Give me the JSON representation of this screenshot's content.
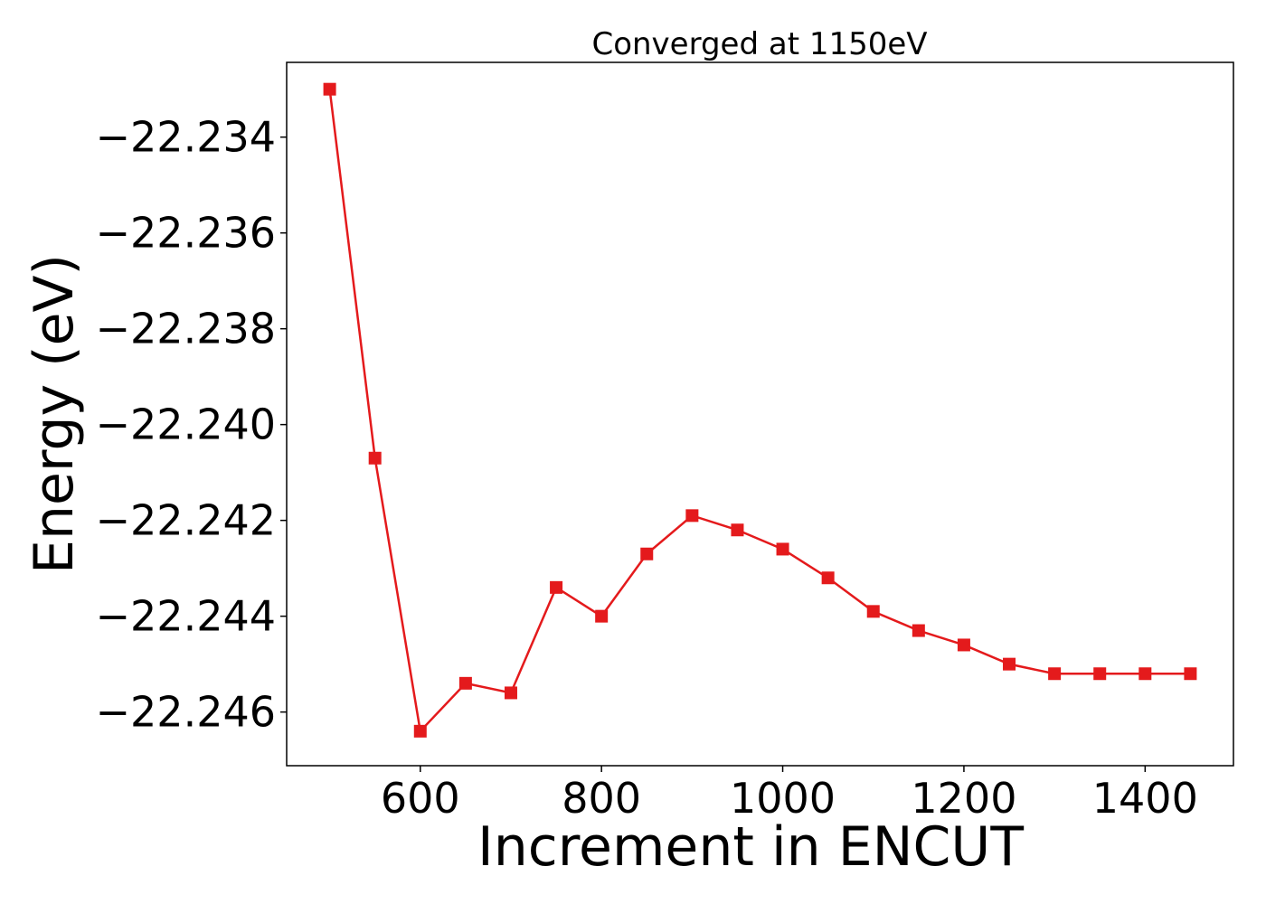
{
  "chart_data": {
    "type": "line",
    "title": "Converged at 1150eV",
    "xlabel": "Increment in ENCUT",
    "ylabel": "Energy (eV)",
    "xlim": [
      452.5,
      1497.5
    ],
    "ylim": [
      -22.24712,
      -22.23244
    ],
    "xticks": [
      600,
      800,
      1000,
      1200,
      1400
    ],
    "yticks": [
      -22.234,
      -22.236,
      -22.238,
      -22.24,
      -22.242,
      -22.244,
      -22.246
    ],
    "ytick_labels": [
      "−22.234",
      "−22.236",
      "−22.238",
      "−22.240",
      "−22.242",
      "−22.244",
      "−22.246"
    ],
    "grid": false,
    "series": [
      {
        "color": "#e41a1c",
        "marker": "square",
        "x": [
          500,
          550,
          600,
          650,
          700,
          750,
          800,
          850,
          900,
          950,
          1000,
          1050,
          1100,
          1150,
          1200,
          1250,
          1300,
          1350,
          1400,
          1450
        ],
        "y": [
          -22.233,
          -22.2407,
          -22.2464,
          -22.2454,
          -22.2456,
          -22.2434,
          -22.244,
          -22.2427,
          -22.2419,
          -22.2422,
          -22.2426,
          -22.2432,
          -22.2439,
          -22.2443,
          -22.2446,
          -22.245,
          -22.2452,
          -22.2452,
          -22.2452,
          -22.2452
        ]
      }
    ]
  }
}
